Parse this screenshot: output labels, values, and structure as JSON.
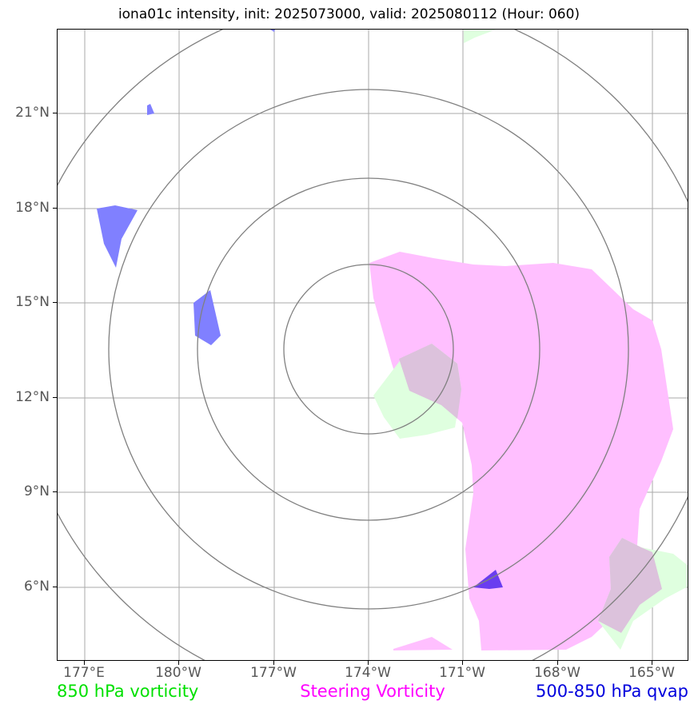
{
  "title": "iona01c intensity, init: 2025073000, valid: 2025080112 (Hour: 060)",
  "latitude_labels": [
    "21°N",
    "18°N",
    "15°N",
    "12°N",
    "9°N",
    "6°N"
  ],
  "longitude_labels": [
    "177°E",
    "180°W",
    "177°W",
    "174°W",
    "171°W",
    "168°W",
    "165°W"
  ],
  "legend": {
    "green": "850 hPa vorticity",
    "magenta": "Steering Vorticity",
    "blue": "500-850 hPa qvap"
  },
  "colors": {
    "green_field": "#dfffdf",
    "magenta_field": "#ffbfff",
    "blue_field": "#8080ff",
    "blue_dark": "#6a3df0",
    "overlap": "#dcc2dc",
    "gridline": "#aaaaaa",
    "range_ring": "#808080"
  }
}
